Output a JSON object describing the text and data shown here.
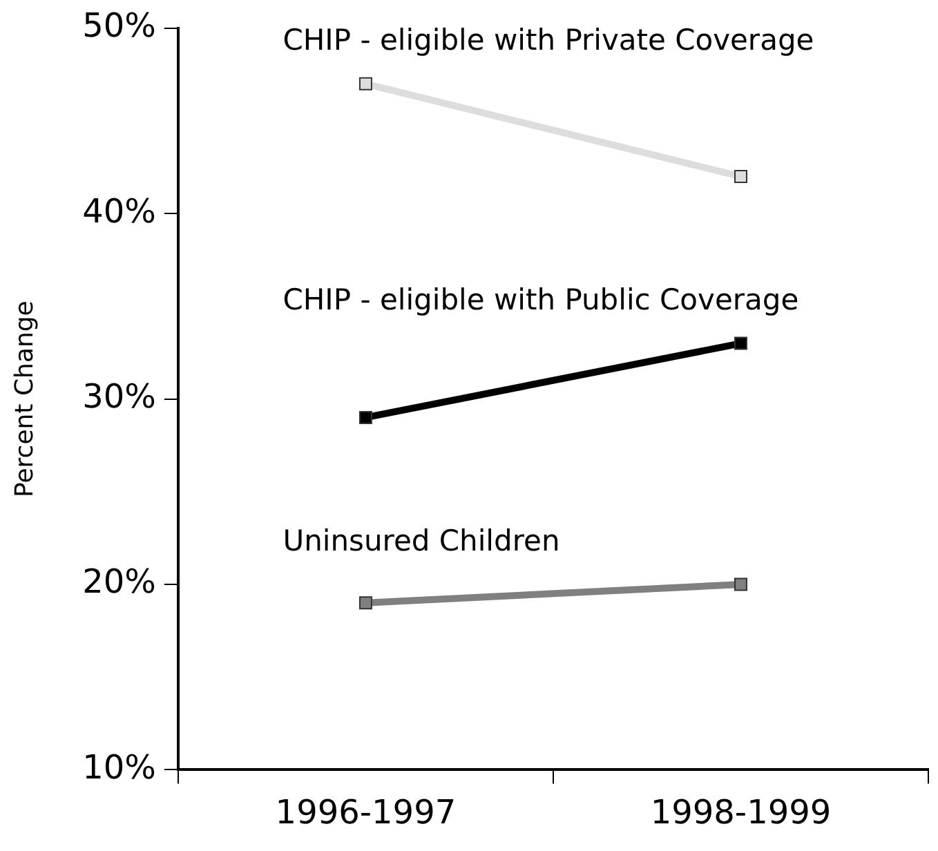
{
  "chart_data": {
    "type": "line",
    "ylabel": "Percent Change",
    "categories": [
      "1996-1997",
      "1998-1999"
    ],
    "series": [
      {
        "name": "CHIP - eligible with Private Coverage",
        "color": "#dddddd",
        "values": [
          47,
          42
        ]
      },
      {
        "name": "CHIP - eligible with Public Coverage",
        "color": "#000000",
        "values": [
          29,
          33
        ]
      },
      {
        "name": "Uninsured Children",
        "color": "#808080",
        "values": [
          19,
          20
        ]
      }
    ],
    "ylim": [
      10,
      50
    ],
    "yticks": [
      {
        "value": 10,
        "label": "10%"
      },
      {
        "value": 20,
        "label": "20%"
      },
      {
        "value": 30,
        "label": "30%"
      },
      {
        "value": 40,
        "label": "40%"
      },
      {
        "value": 50,
        "label": "50%"
      }
    ],
    "grid": false,
    "legend": false,
    "marker": "square",
    "line_style": "solid"
  }
}
